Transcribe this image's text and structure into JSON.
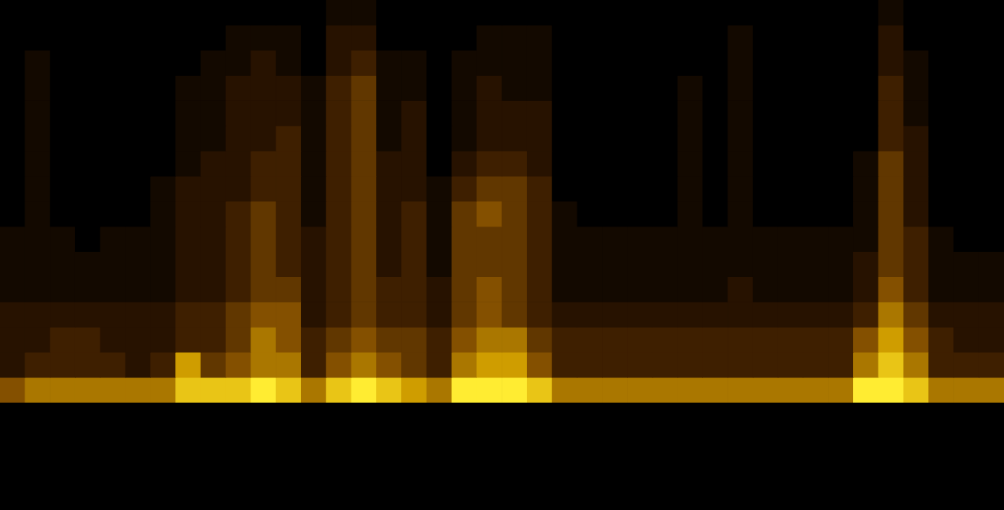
{
  "chart_data": {
    "type": "heatmap",
    "cells": [
      [
        0,
        0,
        0,
        0,
        0,
        0,
        0,
        0,
        0,
        0,
        0,
        0,
        0,
        1,
        1,
        0,
        0,
        0,
        0,
        0,
        0,
        0,
        0,
        0,
        0,
        0,
        0,
        0,
        0,
        0,
        0,
        0,
        0,
        0,
        0,
        1,
        0,
        0,
        0,
        0
      ],
      [
        0,
        0,
        0,
        0,
        0,
        0,
        0,
        0,
        0,
        1,
        1,
        1,
        0,
        2,
        2,
        0,
        0,
        0,
        0,
        1,
        1,
        1,
        0,
        0,
        0,
        0,
        0,
        0,
        0,
        1,
        0,
        0,
        0,
        0,
        0,
        2,
        0,
        0,
        0,
        0
      ],
      [
        0,
        1,
        0,
        0,
        0,
        0,
        0,
        0,
        1,
        1,
        2,
        1,
        0,
        2,
        3,
        1,
        1,
        0,
        1,
        1,
        1,
        1,
        0,
        0,
        0,
        0,
        0,
        0,
        0,
        1,
        0,
        0,
        0,
        0,
        0,
        2,
        1,
        0,
        0,
        0
      ],
      [
        0,
        1,
        0,
        0,
        0,
        0,
        0,
        1,
        1,
        2,
        2,
        2,
        1,
        3,
        4,
        1,
        1,
        0,
        1,
        2,
        1,
        1,
        0,
        0,
        0,
        0,
        0,
        1,
        0,
        1,
        0,
        0,
        0,
        0,
        0,
        3,
        1,
        0,
        0,
        0
      ],
      [
        0,
        1,
        0,
        0,
        0,
        0,
        0,
        1,
        1,
        2,
        2,
        2,
        1,
        3,
        4,
        1,
        2,
        0,
        1,
        2,
        2,
        2,
        0,
        0,
        0,
        0,
        0,
        1,
        0,
        1,
        0,
        0,
        0,
        0,
        0,
        3,
        1,
        0,
        0,
        0
      ],
      [
        0,
        1,
        0,
        0,
        0,
        0,
        0,
        1,
        1,
        2,
        2,
        3,
        1,
        3,
        4,
        1,
        2,
        0,
        1,
        2,
        2,
        2,
        0,
        0,
        0,
        0,
        0,
        1,
        0,
        1,
        0,
        0,
        0,
        0,
        0,
        3,
        2,
        0,
        0,
        0
      ],
      [
        0,
        1,
        0,
        0,
        0,
        0,
        0,
        1,
        2,
        2,
        3,
        3,
        1,
        3,
        4,
        2,
        2,
        0,
        2,
        3,
        3,
        2,
        0,
        0,
        0,
        0,
        0,
        1,
        0,
        1,
        0,
        0,
        0,
        0,
        1,
        4,
        2,
        0,
        0,
        0
      ],
      [
        0,
        1,
        0,
        0,
        0,
        0,
        1,
        2,
        2,
        2,
        3,
        3,
        1,
        3,
        4,
        2,
        2,
        1,
        3,
        4,
        4,
        3,
        0,
        0,
        0,
        0,
        0,
        1,
        0,
        1,
        0,
        0,
        0,
        0,
        1,
        4,
        2,
        0,
        0,
        0
      ],
      [
        0,
        1,
        0,
        0,
        0,
        0,
        1,
        2,
        2,
        3,
        4,
        3,
        1,
        3,
        4,
        2,
        3,
        1,
        4,
        5,
        4,
        3,
        1,
        0,
        0,
        0,
        0,
        1,
        0,
        1,
        0,
        0,
        0,
        0,
        1,
        4,
        2,
        0,
        0,
        0
      ],
      [
        1,
        1,
        1,
        0,
        1,
        1,
        1,
        2,
        2,
        3,
        4,
        3,
        2,
        3,
        4,
        2,
        3,
        1,
        4,
        4,
        4,
        3,
        1,
        1,
        1,
        1,
        1,
        1,
        1,
        1,
        1,
        1,
        1,
        1,
        1,
        4,
        3,
        1,
        0,
        0
      ],
      [
        1,
        1,
        1,
        1,
        1,
        1,
        1,
        2,
        2,
        3,
        4,
        3,
        2,
        3,
        4,
        2,
        3,
        1,
        4,
        4,
        4,
        3,
        1,
        1,
        1,
        1,
        1,
        1,
        1,
        1,
        1,
        1,
        1,
        1,
        2,
        4,
        3,
        1,
        1,
        1
      ],
      [
        1,
        1,
        1,
        1,
        1,
        1,
        1,
        2,
        2,
        3,
        4,
        4,
        2,
        3,
        4,
        3,
        3,
        2,
        4,
        5,
        4,
        3,
        1,
        1,
        1,
        1,
        1,
        1,
        1,
        2,
        1,
        1,
        1,
        1,
        2,
        5,
        3,
        1,
        1,
        1
      ],
      [
        2,
        2,
        2,
        2,
        2,
        2,
        2,
        3,
        3,
        4,
        5,
        5,
        2,
        3,
        4,
        3,
        3,
        2,
        4,
        5,
        4,
        3,
        2,
        2,
        2,
        2,
        2,
        2,
        2,
        2,
        2,
        2,
        2,
        2,
        3,
        6,
        4,
        2,
        2,
        2
      ],
      [
        2,
        2,
        3,
        3,
        2,
        2,
        2,
        3,
        3,
        4,
        6,
        5,
        3,
        4,
        5,
        4,
        4,
        3,
        5,
        6,
        6,
        4,
        3,
        3,
        3,
        3,
        3,
        3,
        3,
        3,
        3,
        3,
        3,
        3,
        5,
        7,
        5,
        3,
        2,
        2
      ],
      [
        2,
        3,
        3,
        3,
        3,
        2,
        3,
        7,
        4,
        5,
        6,
        6,
        3,
        5,
        6,
        5,
        4,
        3,
        6,
        7,
        7,
        5,
        3,
        3,
        3,
        3,
        3,
        3,
        3,
        3,
        3,
        3,
        3,
        3,
        6,
        8,
        6,
        3,
        3,
        3
      ],
      [
        5,
        6,
        6,
        6,
        6,
        6,
        6,
        8,
        8,
        8,
        9,
        8,
        6,
        8,
        9,
        8,
        7,
        6,
        9,
        9,
        9,
        8,
        6,
        6,
        6,
        6,
        6,
        6,
        6,
        6,
        6,
        6,
        6,
        6,
        9,
        9,
        8,
        6,
        6,
        6
      ]
    ],
    "zlim": [
      0,
      9
    ],
    "tick_labels": false,
    "grid": false
  }
}
